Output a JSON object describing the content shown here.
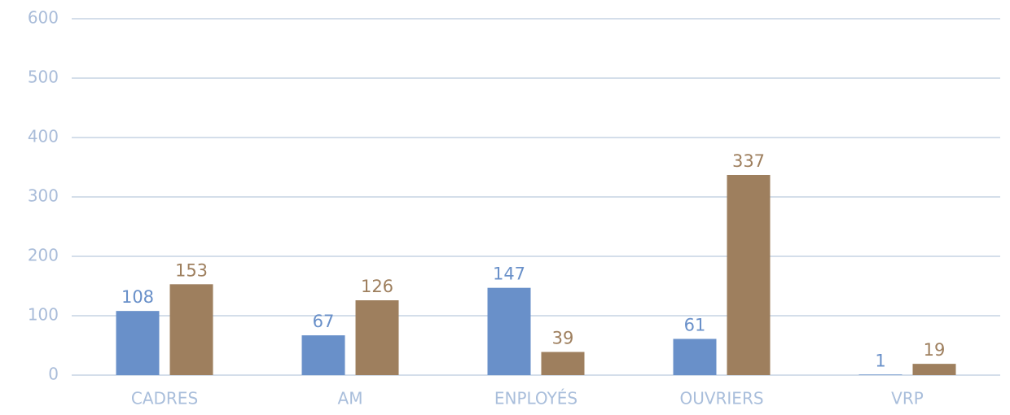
{
  "chart_data": {
    "type": "bar",
    "categories": [
      "CADRES",
      "AM",
      "ENPLOYÉS",
      "OUVRIERS",
      "VRP"
    ],
    "series": [
      {
        "color": "#6990c9",
        "values": [
          108,
          67,
          147,
          61,
          1
        ]
      },
      {
        "color": "#9e7f5e",
        "values": [
          153,
          126,
          39,
          337,
          19
        ]
      }
    ],
    "ylim": [
      0,
      600
    ],
    "yticks": [
      0,
      100,
      200,
      300,
      400,
      500,
      600
    ],
    "grid": true
  }
}
